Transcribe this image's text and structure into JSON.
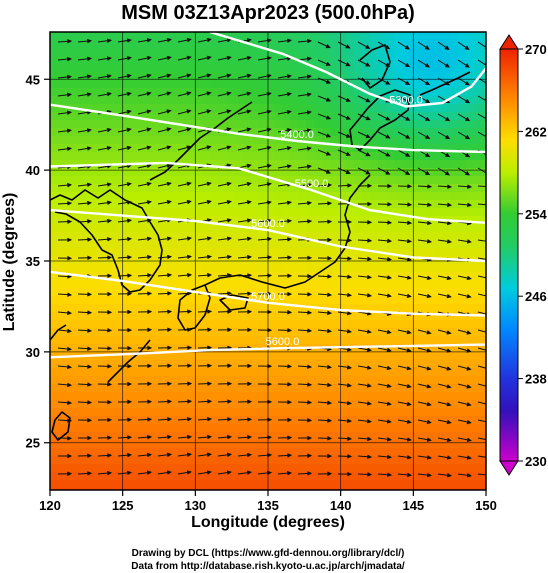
{
  "title": "MSM 03Z13Apr2023 (500.0hPa)",
  "axes": {
    "xlabel": "Longitude (degrees)",
    "ylabel": "Latitude  (degrees)",
    "xlim": [
      120,
      150
    ],
    "ylim": [
      22.4,
      47.6
    ],
    "xticks": [
      120,
      125,
      130,
      135,
      140,
      145,
      150
    ],
    "yticks": [
      25,
      30,
      35,
      40,
      45
    ],
    "grid": true
  },
  "colorbar": {
    "min": 230,
    "max": 270,
    "ticks": [
      230,
      238,
      246,
      254,
      262,
      270
    ],
    "colors": [
      "#cc00cc",
      "#2222cc",
      "#00aaff",
      "#33cc44",
      "#ddee00",
      "#ff8800",
      "#ee2200"
    ]
  },
  "contours": [
    {
      "label": "5600.0",
      "points": [
        [
          120,
          29.7
        ],
        [
          126,
          29.9
        ],
        [
          131,
          30.1
        ],
        [
          136,
          30.2
        ],
        [
          143,
          30.3
        ],
        [
          150,
          30.4
        ]
      ]
    },
    {
      "label": "5700.0",
      "points": [
        [
          120,
          34.4
        ],
        [
          125,
          33.9
        ],
        [
          130,
          33.3
        ],
        [
          135,
          32.7
        ],
        [
          140,
          32.3
        ],
        [
          145,
          32.1
        ],
        [
          150,
          32.0
        ]
      ]
    },
    {
      "label": "5600.0",
      "points": [
        [
          120,
          37.8
        ],
        [
          125,
          37.5
        ],
        [
          130,
          37.2
        ],
        [
          135,
          36.7
        ],
        [
          140,
          35.8
        ],
        [
          145,
          35.2
        ],
        [
          150,
          35.0
        ]
      ]
    },
    {
      "label": "5500.0",
      "points": [
        [
          120,
          40.2
        ],
        [
          124,
          40.3
        ],
        [
          128,
          40.4
        ],
        [
          133,
          40.1
        ],
        [
          138,
          38.9
        ],
        [
          142,
          37.8
        ],
        [
          146,
          37.3
        ],
        [
          150,
          37.1
        ]
      ]
    },
    {
      "label": "5400.0",
      "points": [
        [
          120,
          43.6
        ],
        [
          125,
          43.0
        ],
        [
          129,
          42.5
        ],
        [
          133,
          42.0
        ],
        [
          137,
          41.6
        ],
        [
          141,
          41.3
        ],
        [
          145,
          41.1
        ],
        [
          150,
          41.0
        ]
      ]
    },
    {
      "label": "5300.0",
      "points": [
        [
          131,
          47.6
        ],
        [
          136,
          46.4
        ],
        [
          139,
          45.4
        ],
        [
          142,
          44.2
        ],
        [
          144.5,
          43.5
        ],
        [
          147,
          43.7
        ],
        [
          149,
          44.6
        ],
        [
          150,
          45.6
        ]
      ]
    }
  ],
  "credits": {
    "line1": "Drawing by DCL (https://www.gfd-dennou.org/library/dcl/)",
    "line2": "Data from http://database.rish.kyoto-u.ac.jp/arch/jmadata/"
  }
}
